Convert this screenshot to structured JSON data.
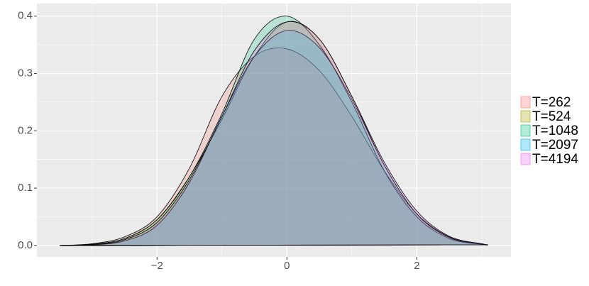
{
  "chart_data": {
    "type": "density",
    "x": [
      -3.5,
      -3,
      -2.5,
      -2,
      -1.5,
      -1,
      -0.5,
      0,
      0.5,
      1,
      1.5,
      2,
      2.5,
      3,
      3.1
    ],
    "series": [
      {
        "name": "T=262",
        "color": "#F8766D",
        "values": [
          0,
          0.003,
          0.015,
          0.05,
          0.135,
          0.26,
          0.33,
          0.343,
          0.305,
          0.225,
          0.13,
          0.055,
          0.015,
          0.002,
          0.001
        ]
      },
      {
        "name": "T=524",
        "color": "#A3A500",
        "values": [
          0,
          0.002,
          0.012,
          0.045,
          0.12,
          0.22,
          0.33,
          0.39,
          0.36,
          0.26,
          0.14,
          0.055,
          0.014,
          0.002,
          0.001
        ]
      },
      {
        "name": "T=1048",
        "color": "#00BF7D",
        "values": [
          0,
          0.002,
          0.012,
          0.045,
          0.12,
          0.23,
          0.36,
          0.4,
          0.35,
          0.25,
          0.13,
          0.05,
          0.012,
          0.002,
          0.001
        ]
      },
      {
        "name": "T=2097",
        "color": "#00B0F6",
        "values": [
          0,
          0.001,
          0.008,
          0.035,
          0.11,
          0.225,
          0.33,
          0.375,
          0.345,
          0.255,
          0.14,
          0.055,
          0.014,
          0.002,
          0.001
        ]
      },
      {
        "name": "T=4194",
        "color": "#E76BF3",
        "values": [
          0,
          0.001,
          0.01,
          0.04,
          0.115,
          0.225,
          0.34,
          0.39,
          0.36,
          0.26,
          0.145,
          0.06,
          0.016,
          0.003,
          0.001
        ]
      }
    ],
    "xlim": [
      -3.85,
      3.45
    ],
    "ylim": [
      -0.02,
      0.422
    ],
    "xticks": [
      {
        "value": -2,
        "label": "−2"
      },
      0,
      2
    ],
    "yticks": [
      {
        "value": 0,
        "label": "0.0"
      },
      0.1,
      0.2,
      0.3,
      0.4
    ],
    "x_minor_ticks": [
      -3,
      -1,
      1,
      3
    ],
    "y_minor_ticks": [
      0.05,
      0.15,
      0.25,
      0.35
    ],
    "grid": true,
    "legend_position": "right"
  }
}
